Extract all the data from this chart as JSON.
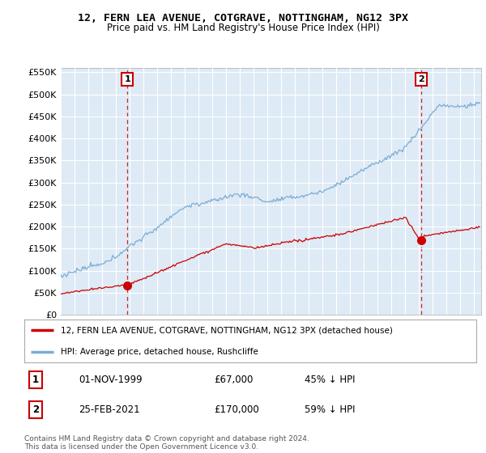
{
  "title": "12, FERN LEA AVENUE, COTGRAVE, NOTTINGHAM, NG12 3PX",
  "subtitle": "Price paid vs. HM Land Registry's House Price Index (HPI)",
  "legend_property": "12, FERN LEA AVENUE, COTGRAVE, NOTTINGHAM, NG12 3PX (detached house)",
  "legend_hpi": "HPI: Average price, detached house, Rushcliffe",
  "property_color": "#cc0000",
  "hpi_color": "#7aadd4",
  "sale1_date": 1999.84,
  "sale1_price": 67000,
  "sale2_date": 2021.15,
  "sale2_price": 170000,
  "copyright": "Contains HM Land Registry data © Crown copyright and database right 2024.\nThis data is licensed under the Open Government Licence v3.0.",
  "ylim": [
    0,
    560000
  ],
  "yticks": [
    0,
    50000,
    100000,
    150000,
    200000,
    250000,
    300000,
    350000,
    400000,
    450000,
    500000,
    550000
  ],
  "plot_bg_color": "#deeaf5",
  "background_color": "#ffffff",
  "grid_color": "#ffffff"
}
